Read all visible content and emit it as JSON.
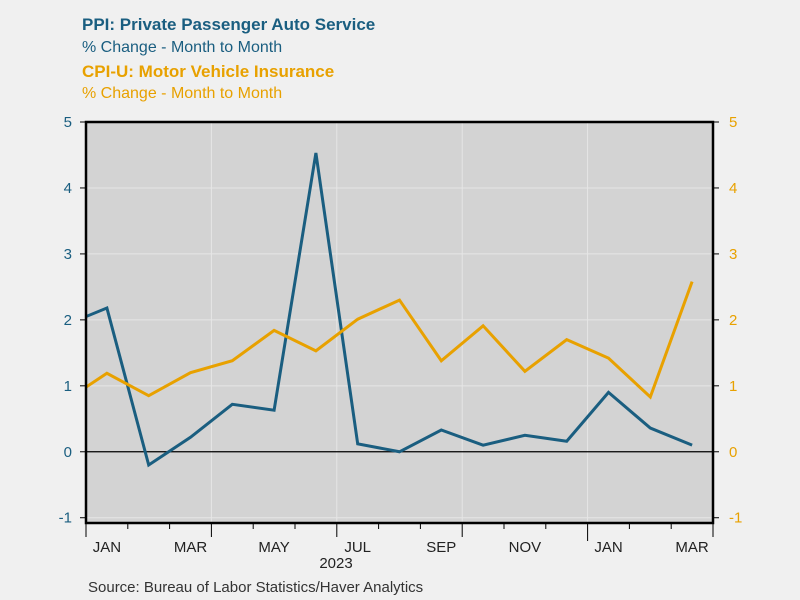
{
  "chart_data": {
    "type": "line",
    "titles": [
      {
        "text": "PPI: Private Passenger Auto Service",
        "subtitle": "% Change - Month to Month",
        "color": "#1a5e80"
      },
      {
        "text": "CPI-U: Motor Vehicle Insurance",
        "subtitle": "% Change - Month to Month",
        "color": "#e8a100"
      }
    ],
    "x": [
      "2022-12",
      "2023-01",
      "2023-02",
      "2023-03",
      "2023-04",
      "2023-05",
      "2023-06",
      "2023-07",
      "2023-08",
      "2023-09",
      "2023-10",
      "2023-11",
      "2023-12",
      "2024-01",
      "2024-02",
      "2024-03"
    ],
    "x_tick_labels": [
      "JAN",
      "MAR",
      "MAY",
      "JUL",
      "SEP",
      "NOV",
      "JAN",
      "MAR"
    ],
    "x_year_label": "2023",
    "series": [
      {
        "name": "PPI: Private Passenger Auto Service",
        "color": "#1a5e80",
        "axis": "left",
        "values": [
          1.92,
          2.18,
          -0.2,
          0.22,
          0.72,
          0.63,
          4.53,
          0.12,
          0.0,
          0.33,
          0.1,
          0.25,
          0.16,
          0.9,
          0.36,
          0.1
        ]
      },
      {
        "name": "CPI-U: Motor Vehicle Insurance",
        "color": "#e8a100",
        "axis": "right",
        "values": [
          0.77,
          1.19,
          0.85,
          1.2,
          1.38,
          1.84,
          1.53,
          2.01,
          2.3,
          1.38,
          1.91,
          1.22,
          1.7,
          1.42,
          0.83,
          2.58
        ]
      }
    ],
    "y_ticks": [
      -1,
      0,
      1,
      2,
      3,
      4,
      5
    ],
    "ylim": [
      -1.08,
      5.0
    ],
    "xlim": [
      "2023-01",
      "2024-03"
    ],
    "grid": true,
    "source": "Source:  Bureau of Labor Statistics/Haver Analytics",
    "colors": {
      "plot_bg": "#d3d3d3",
      "page_bg": "#f0f0f0",
      "grid": "#e6e6e6"
    }
  }
}
